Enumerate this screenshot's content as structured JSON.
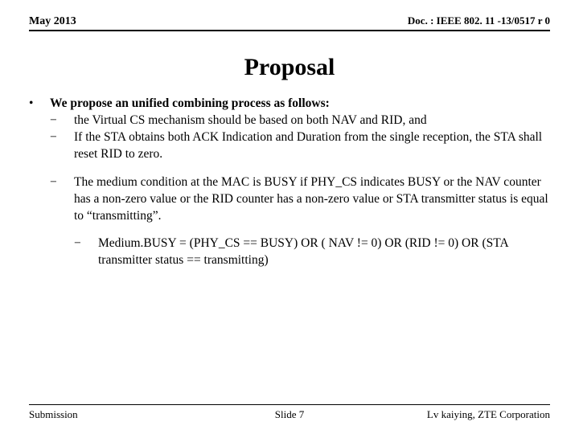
{
  "header": {
    "date": "May 2013",
    "doc": "Doc. : IEEE 802. 11 -13/0517 r 0"
  },
  "title": "Proposal",
  "body": {
    "lead": "We propose an unified combining process as follows:",
    "items_a": [
      "the Virtual CS mechanism should be based on both NAV and RID, and",
      "If the STA obtains both ACK Indication and Duration from the single reception, the STA shall reset RID to zero."
    ],
    "item_b": "The medium condition at the MAC is BUSY if PHY_CS indicates BUSY or the NAV counter has a non-zero value or the RID counter has a non-zero value or STA transmitter status is equal to “transmitting”.",
    "sub": "Medium.BUSY   =  (PHY_CS == BUSY) OR ( NAV != 0)  OR (RID != 0) OR (STA transmitter status == transmitting)"
  },
  "footer": {
    "left": "Submission",
    "mid": "Slide 7",
    "right": "Lv kaiying, ZTE Corporation"
  },
  "glyph": {
    "bullet": "•",
    "dash": "−"
  }
}
